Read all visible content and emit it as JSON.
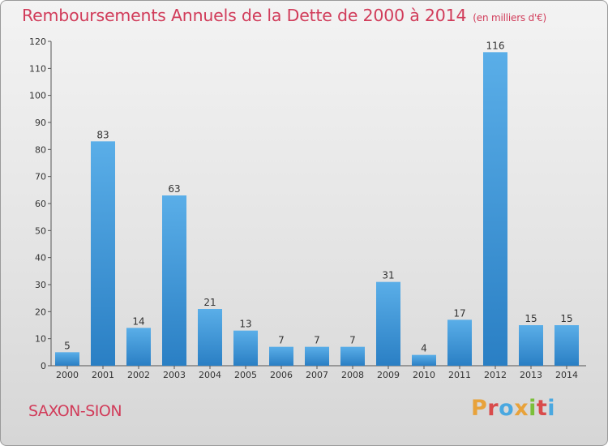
{
  "header": {
    "title": "Remboursements Annuels de la Dette de 2000 à 2014",
    "unit": "(en milliers d'€)"
  },
  "footer": {
    "commune": "SAXON-SION",
    "brand": "Proxiti"
  },
  "colors": {
    "title": "#d13c5a",
    "bar_light": "#5aaee8",
    "bar_dark": "#2a7fc4",
    "logo_letters": [
      "#e8a23a",
      "#d94b4b",
      "#4aa8e0",
      "#e8a23a",
      "#7bbf3a",
      "#d94b4b",
      "#4aa8e0"
    ]
  },
  "chart_data": {
    "type": "bar",
    "categories": [
      "2000",
      "2001",
      "2002",
      "2003",
      "2004",
      "2005",
      "2006",
      "2007",
      "2008",
      "2009",
      "2010",
      "2011",
      "2012",
      "2013",
      "2014"
    ],
    "values": [
      5,
      83,
      14,
      63,
      21,
      13,
      7,
      7,
      7,
      31,
      4,
      17,
      116,
      15,
      15
    ],
    "ylim": [
      0,
      120
    ],
    "yticks": [
      0,
      10,
      20,
      30,
      40,
      50,
      60,
      70,
      80,
      90,
      100,
      110,
      120
    ],
    "grid": false,
    "data_labels": true
  }
}
